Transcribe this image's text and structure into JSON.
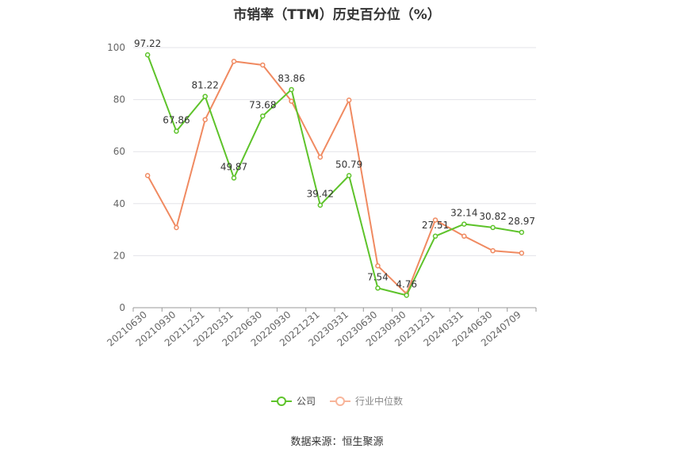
{
  "chart_data": {
    "type": "line",
    "title": "市销率（TTM）历史百分位（%）",
    "categories": [
      "20210630",
      "20210930",
      "20211231",
      "20220331",
      "20220630",
      "20220930",
      "20221231",
      "20230331",
      "20230630",
      "20230930",
      "20231231",
      "20240331",
      "20240630",
      "20240709"
    ],
    "ylim": [
      0,
      100
    ],
    "yticks": [
      0,
      20,
      40,
      60,
      80,
      100
    ],
    "grid": true,
    "legend_position": "bottom",
    "series": [
      {
        "name": "公司",
        "color": "#5ec32b",
        "values": [
          97.22,
          67.86,
          81.22,
          49.87,
          73.68,
          83.86,
          39.42,
          50.79,
          7.54,
          4.76,
          27.51,
          32.14,
          30.82,
          28.97
        ],
        "labels": [
          "97.22",
          "67.86",
          "81.22",
          "49.87",
          "73.68",
          "83.86",
          "39.42",
          "50.79",
          "7.54",
          "4.76",
          "27.51",
          "32.14",
          "30.82",
          "28.97"
        ]
      },
      {
        "name": "行业中位数",
        "color": "#f08a61",
        "values": [
          50.8,
          30.8,
          72.3,
          94.7,
          93.3,
          79.4,
          57.9,
          79.8,
          16.1,
          5.3,
          33.7,
          27.5,
          21.9,
          21.0
        ]
      }
    ]
  },
  "legend": {
    "company": "公司",
    "industry": "行业中位数"
  },
  "source": "数据来源：恒生聚源"
}
